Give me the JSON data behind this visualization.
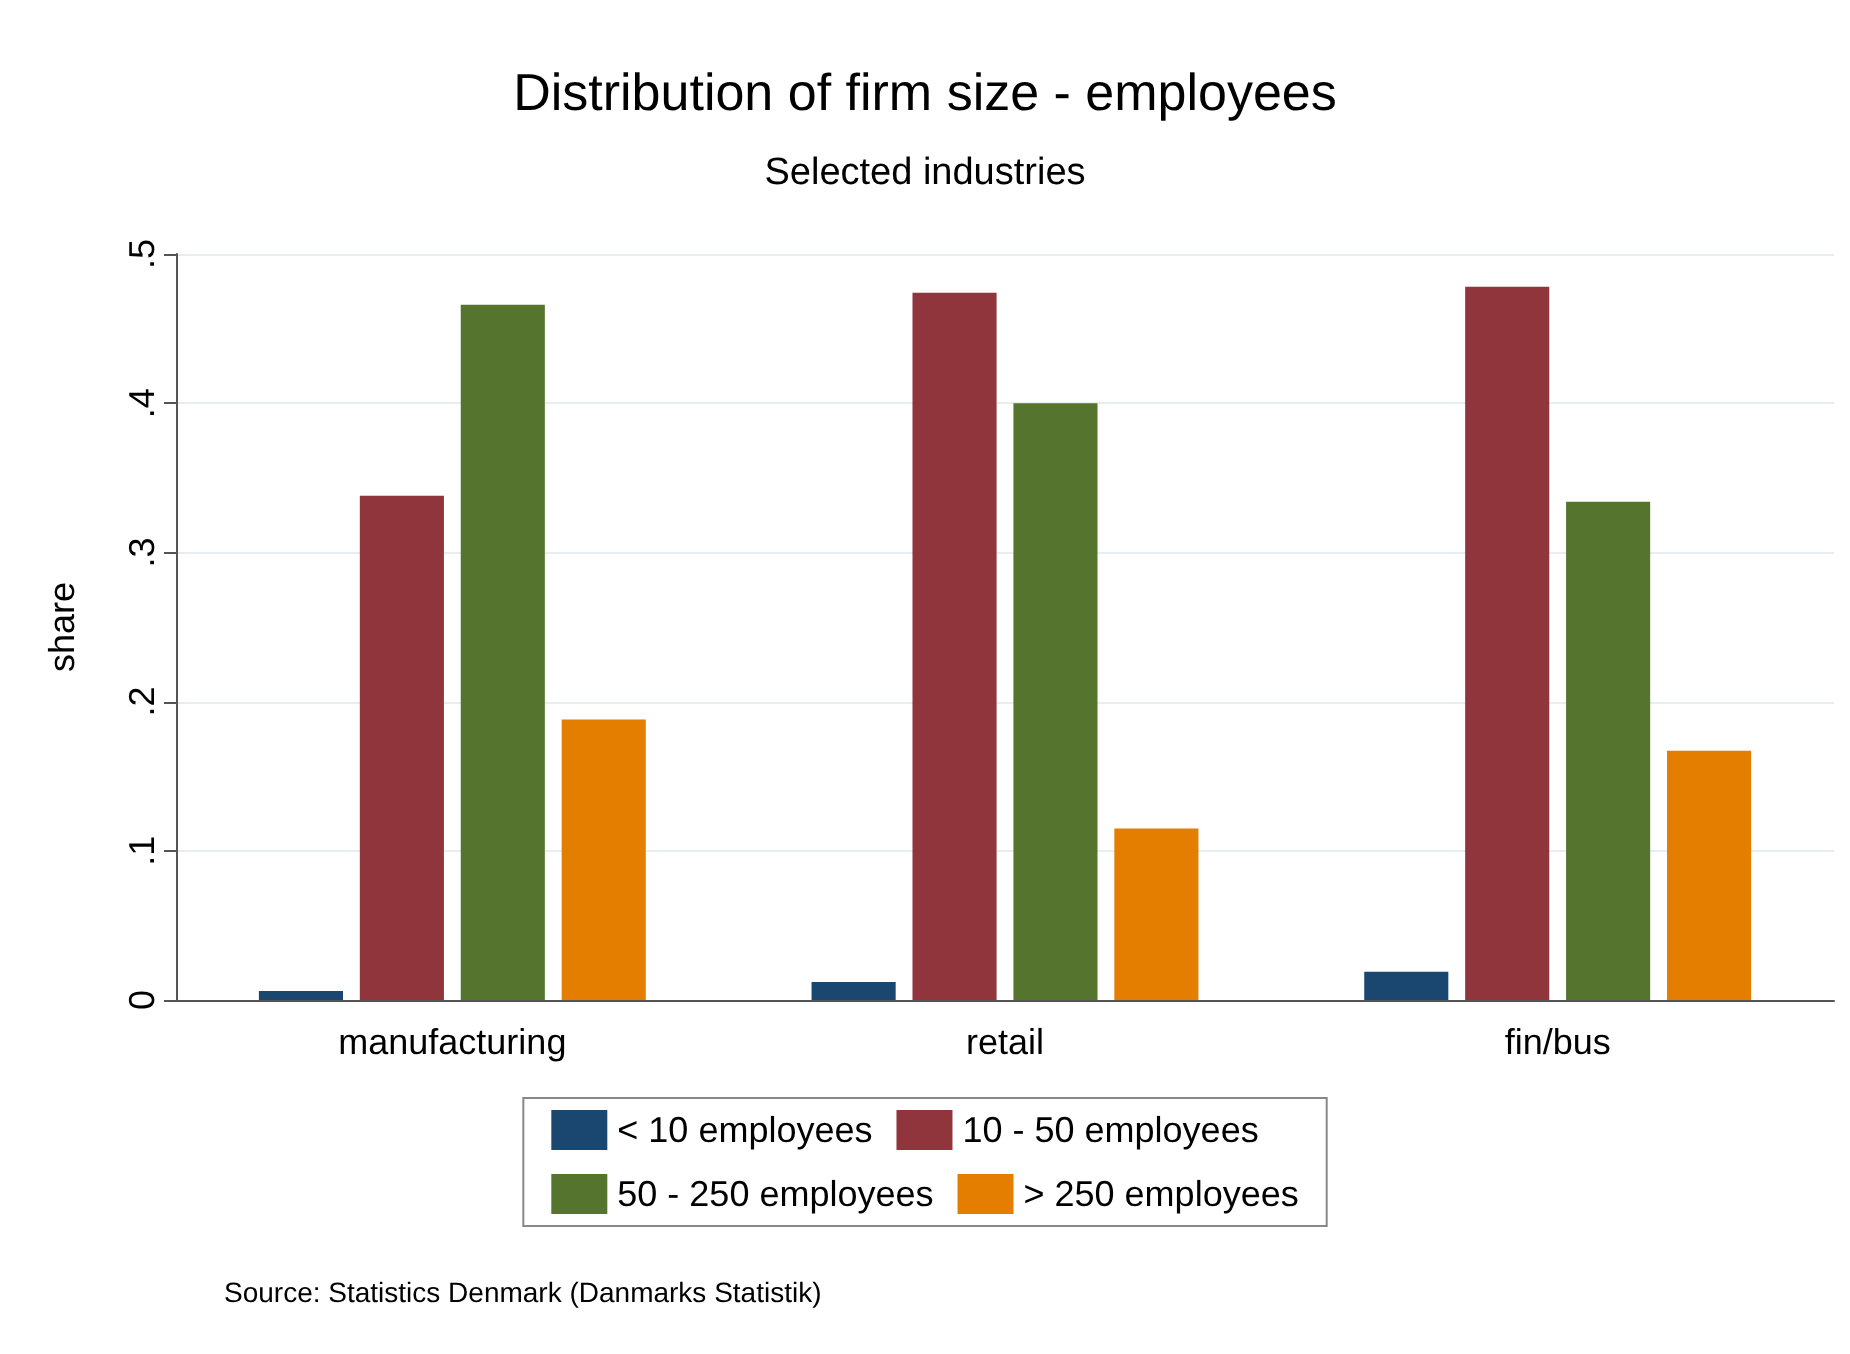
{
  "chart_data": {
    "type": "bar",
    "title": "Distribution of firm size - employees",
    "subtitle": "Selected industries",
    "ylabel": "share",
    "categories": [
      "manufacturing",
      "retail",
      "fin/bus"
    ],
    "series": [
      {
        "name": "< 10 employees",
        "color": "#1a476f",
        "values": [
          0.006,
          0.012,
          0.019
        ]
      },
      {
        "name": "10 - 50 employees",
        "color": "#90353b",
        "values": [
          0.338,
          0.474,
          0.478
        ]
      },
      {
        "name": "50 - 250 employees",
        "color": "#55752f",
        "values": [
          0.466,
          0.4,
          0.334
        ]
      },
      {
        "name": "> 250 employees",
        "color": "#e37e00",
        "values": [
          0.188,
          0.115,
          0.167
        ]
      }
    ],
    "ylim": [
      0,
      0.5
    ],
    "yticks": [
      0,
      {
        "value": 0.1,
        "label": ".1"
      },
      {
        "value": 0.2,
        "label": ".2"
      },
      {
        "value": 0.3,
        "label": ".3"
      },
      {
        "value": 0.4,
        "label": ".4"
      },
      {
        "value": 0.5,
        "label": ".5"
      }
    ],
    "grid": "y",
    "legend": "bottom",
    "annotations": [
      "Source: Statistics Denmark (Danmarks Statistik)"
    ]
  }
}
